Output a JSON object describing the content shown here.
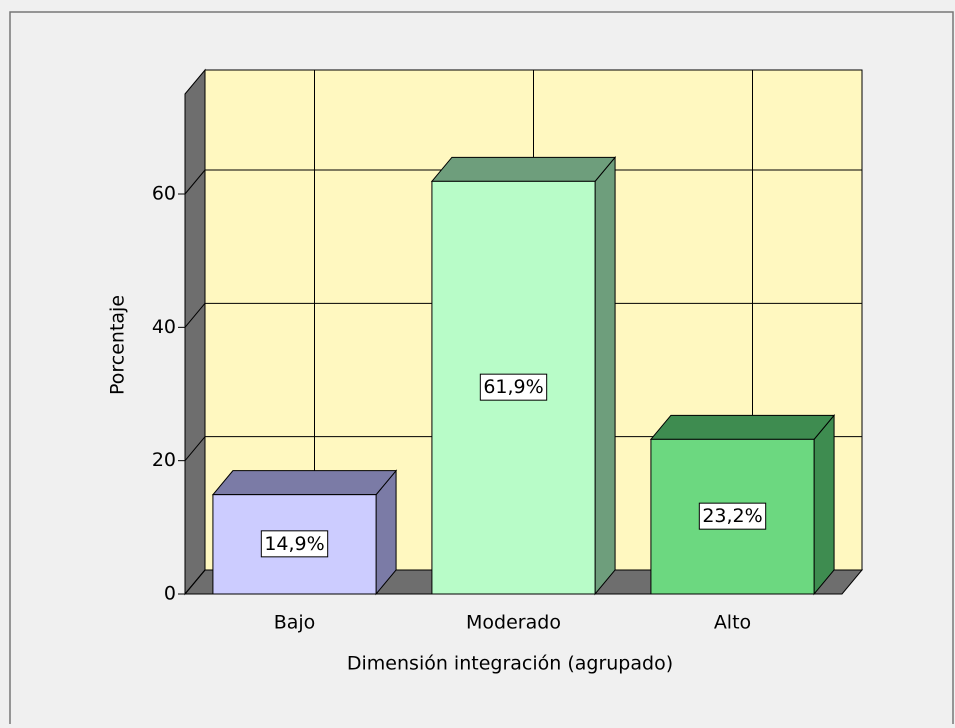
{
  "chart_data": {
    "type": "bar3d",
    "categories": [
      "Bajo",
      "Moderado",
      "Alto"
    ],
    "values": [
      14.9,
      61.9,
      23.2
    ],
    "value_labels": [
      "14,9%",
      "61,9%",
      "23,2%"
    ],
    "colors": [
      "#ccccff",
      "#b8fcc8",
      "#6cd880"
    ],
    "shade_colors": [
      "#7b7ba6",
      "#6e9e7c",
      "#3e8c50"
    ],
    "xlabel": "Dimensión integración (agrupado)",
    "ylabel": "Porcentaje",
    "ylim": [
      0,
      75
    ],
    "yticks": [
      0,
      20,
      40,
      60
    ],
    "grid": true
  }
}
